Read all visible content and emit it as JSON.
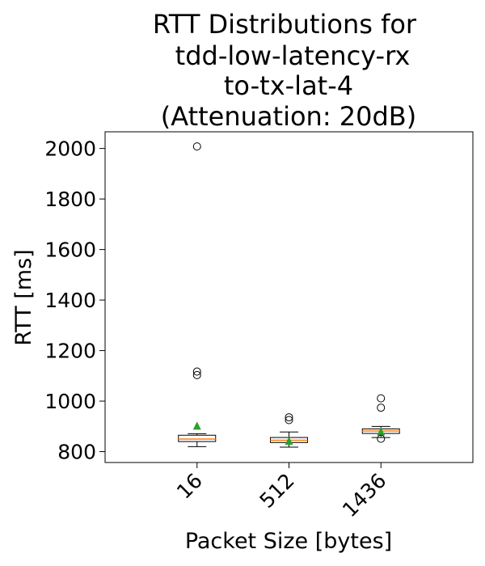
{
  "chart_data": {
    "type": "box",
    "title_lines": [
      "RTT Distributions for",
      "tdd-low-latency-rx",
      "to-tx-lat-4",
      "(Attenuation: 20dB)"
    ],
    "xlabel": "Packet Size [bytes]",
    "ylabel": "RTT [ms]",
    "categories": [
      "16",
      "512",
      "1436"
    ],
    "ylim": [
      757,
      2066
    ],
    "yticks": [
      800,
      1000,
      1200,
      1400,
      1600,
      1800,
      2000
    ],
    "boxes": [
      {
        "category": "16",
        "whisker_low": 820,
        "q1": 840,
        "median": 850,
        "q3": 865,
        "whisker_high": 871,
        "mean": 903,
        "outliers": [
          2008,
          1117,
          1103
        ]
      },
      {
        "category": "512",
        "whisker_low": 818,
        "q1": 836,
        "median": 845,
        "q3": 856,
        "whisker_high": 878,
        "mean": 843,
        "outliers": [
          936,
          925
        ]
      },
      {
        "category": "1436",
        "whisker_low": 856,
        "q1": 872,
        "median": 882,
        "q3": 890,
        "whisker_high": 900,
        "mean": 880,
        "outliers": [
          1011,
          974,
          851
        ]
      }
    ],
    "colors": {
      "median": "#ff7f0e",
      "mean_marker": "#2ca02c",
      "box": "#000000"
    },
    "grid": false
  }
}
